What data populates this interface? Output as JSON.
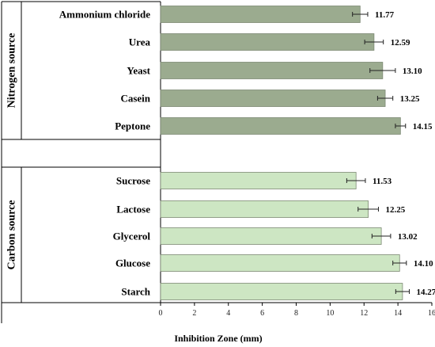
{
  "chart_data": {
    "type": "bar",
    "orientation": "horizontal",
    "xlabel": "Inhibition Zone (mm)",
    "xlim": [
      0,
      16
    ],
    "xticks": [
      "0",
      "2",
      "4",
      "6",
      "8",
      "10",
      "12",
      "14",
      "16"
    ],
    "groups": [
      {
        "name": "Nitrogen source",
        "color": "#9bab8f",
        "categories": [
          "Ammonium chloride",
          "Urea",
          "Yeast",
          "Casein",
          "Peptone"
        ],
        "values": [
          11.77,
          12.59,
          13.1,
          13.25,
          14.15
        ],
        "value_labels": [
          "11.77",
          "12.59",
          "13.10",
          "13.25",
          "14.15"
        ],
        "errors": [
          0.45,
          0.55,
          0.75,
          0.45,
          0.3
        ]
      },
      {
        "name": "Carbon source",
        "color": "#cde6c3",
        "categories": [
          "Sucrose",
          "Lactose",
          "Glycerol",
          "Glucose",
          "Starch"
        ],
        "values": [
          11.53,
          12.25,
          13.02,
          14.1,
          14.27
        ],
        "value_labels": [
          "11.53",
          "12.25",
          "13.02",
          "14.10",
          "14.27"
        ],
        "errors": [
          0.55,
          0.6,
          0.55,
          0.4,
          0.4
        ]
      }
    ]
  }
}
